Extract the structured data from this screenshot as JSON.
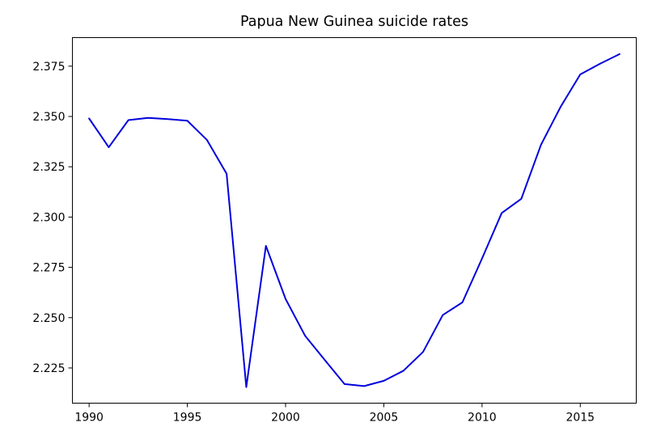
{
  "chart_data": {
    "type": "line",
    "title": "Papua New Guinea suicide rates",
    "xlabel": "",
    "ylabel": "",
    "xlim": [
      1989.15,
      2017.85
    ],
    "ylim": [
      2.2075,
      2.3892
    ],
    "x_ticks": [
      1990,
      1995,
      2000,
      2005,
      2010,
      2015
    ],
    "y_ticks": [
      2.225,
      2.25,
      2.275,
      2.3,
      2.325,
      2.35,
      2.375
    ],
    "x_tick_labels": [
      "1990",
      "1995",
      "2000",
      "2005",
      "2010",
      "2015"
    ],
    "y_tick_labels": [
      "2.225",
      "2.250",
      "2.275",
      "2.300",
      "2.325",
      "2.350",
      "2.375"
    ],
    "grid": false,
    "series": [
      {
        "color": "#0000dd",
        "x": [
          1990,
          1991,
          1992,
          1993,
          1994,
          1995,
          1996,
          1997,
          1998,
          1999,
          2000,
          2001,
          2002,
          2003,
          2004,
          2005,
          2006,
          2007,
          2008,
          2009,
          2010,
          2011,
          2012,
          2013,
          2014,
          2015,
          2016,
          2017
        ],
        "y": [
          2.349,
          2.3347,
          2.3482,
          2.3493,
          2.3487,
          2.3479,
          2.3383,
          2.3215,
          2.2155,
          2.2857,
          2.2593,
          2.2409,
          2.2289,
          2.217,
          2.216,
          2.2186,
          2.2236,
          2.233,
          2.2513,
          2.2576,
          2.2794,
          2.302,
          2.3091,
          2.3359,
          2.3548,
          2.3709,
          2.3762,
          2.381
        ]
      }
    ]
  }
}
